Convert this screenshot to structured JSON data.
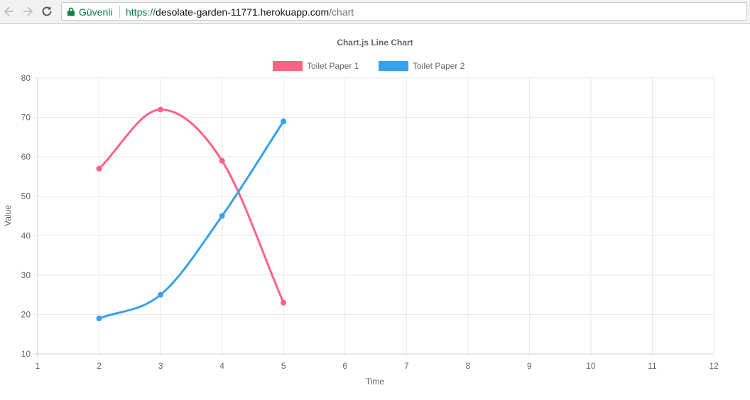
{
  "browser": {
    "secure_label": "Güvenli",
    "url_scheme": "https://",
    "url_host": "desolate-garden-11771.herokuapp.com",
    "url_path": "/chart"
  },
  "chart_data": {
    "type": "line",
    "title": "Chart.js Line Chart",
    "xlabel": "Time",
    "ylabel": "Value",
    "xlim": [
      1,
      12
    ],
    "ylim": [
      10,
      80
    ],
    "x_ticks": [
      1,
      2,
      3,
      4,
      5,
      6,
      7,
      8,
      9,
      10,
      11,
      12
    ],
    "y_ticks": [
      10,
      20,
      30,
      40,
      50,
      60,
      70,
      80
    ],
    "grid": true,
    "legend_position": "top",
    "series": [
      {
        "name": "Toilet Paper 1",
        "color": "#ff6384",
        "x": [
          2,
          3,
          4,
          5
        ],
        "values": [
          57,
          72,
          59,
          23
        ]
      },
      {
        "name": "Toilet Paper 2",
        "color": "#36a2eb",
        "x": [
          2,
          3,
          4,
          5
        ],
        "values": [
          19,
          25,
          45,
          69
        ]
      }
    ]
  }
}
